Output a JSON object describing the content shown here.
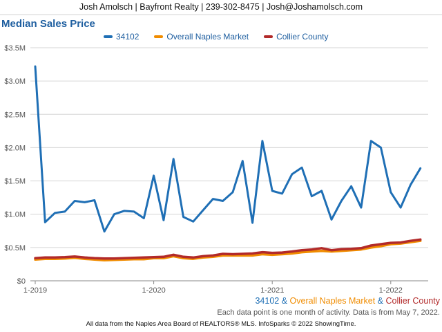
{
  "header": {
    "text": "Josh Amolsch | Bayfront Realty | 239-302-8475 | Josh@Joshamolsch.com"
  },
  "chart_data": {
    "type": "line",
    "title": "Median Sales Price",
    "xlabel": "",
    "ylabel": "",
    "ylim": [
      0,
      3500000
    ],
    "y_ticks": [
      0,
      500000,
      1000000,
      1500000,
      2000000,
      2500000,
      3000000,
      3500000
    ],
    "y_tick_labels": [
      "$0",
      "$0.5M",
      "$1.0M",
      "$1.5M",
      "$2.0M",
      "$2.5M",
      "$3.0M",
      "$3.5M"
    ],
    "x_ticks": [
      "2019-01",
      "2020-01",
      "2021-01",
      "2022-01"
    ],
    "x_tick_labels": [
      "1-2019",
      "1-2020",
      "1-2021",
      "1-2022"
    ],
    "x": [
      "2019-01",
      "2019-02",
      "2019-03",
      "2019-04",
      "2019-05",
      "2019-06",
      "2019-07",
      "2019-08",
      "2019-09",
      "2019-10",
      "2019-11",
      "2019-12",
      "2020-01",
      "2020-02",
      "2020-03",
      "2020-04",
      "2020-05",
      "2020-06",
      "2020-07",
      "2020-08",
      "2020-09",
      "2020-10",
      "2020-11",
      "2020-12",
      "2021-01",
      "2021-02",
      "2021-03",
      "2021-04",
      "2021-05",
      "2021-06",
      "2021-07",
      "2021-08",
      "2021-09",
      "2021-10",
      "2021-11",
      "2021-12",
      "2022-01",
      "2022-02",
      "2022-03",
      "2022-04"
    ],
    "grid": "horizontal",
    "legend_position": "top",
    "series": [
      {
        "name": "34102",
        "color": "#1f6fb5",
        "values": [
          3220000,
          880000,
          1020000,
          1040000,
          1200000,
          1180000,
          1210000,
          740000,
          1000000,
          1050000,
          1040000,
          940000,
          1580000,
          910000,
          1830000,
          960000,
          890000,
          1060000,
          1230000,
          1200000,
          1330000,
          1800000,
          870000,
          2100000,
          1350000,
          1310000,
          1600000,
          1700000,
          1270000,
          1350000,
          920000,
          1200000,
          1420000,
          1100000,
          2100000,
          2000000,
          1330000,
          1100000,
          1440000,
          1690000
        ]
      },
      {
        "name": "Overall Naples Market",
        "color": "#f08c00",
        "values": [
          320000,
          330000,
          330000,
          335000,
          345000,
          330000,
          320000,
          310000,
          315000,
          320000,
          325000,
          325000,
          340000,
          340000,
          370000,
          340000,
          330000,
          350000,
          360000,
          380000,
          380000,
          380000,
          380000,
          400000,
          390000,
          400000,
          410000,
          430000,
          440000,
          450000,
          440000,
          450000,
          460000,
          470000,
          500000,
          520000,
          550000,
          560000,
          580000,
          600000
        ]
      },
      {
        "name": "Collier County",
        "color": "#b22a2a",
        "values": [
          340000,
          350000,
          350000,
          355000,
          365000,
          350000,
          340000,
          335000,
          335000,
          340000,
          345000,
          350000,
          355000,
          360000,
          390000,
          360000,
          350000,
          370000,
          380000,
          405000,
          400000,
          405000,
          410000,
          430000,
          420000,
          425000,
          440000,
          460000,
          470000,
          490000,
          460000,
          475000,
          480000,
          490000,
          530000,
          550000,
          570000,
          575000,
          600000,
          620000
        ]
      }
    ]
  },
  "subtitle": {
    "part1": "34102",
    "sep1": " & ",
    "part2": "Overall Naples Market",
    "sep2": " & ",
    "part3": "Collier County"
  },
  "note": "Each data point is one month of activity. Data is from May 7, 2022.",
  "footer": "All data from the Naples Area Board of REALTORS® MLS. InfoSparks © 2022 ShowingTime."
}
